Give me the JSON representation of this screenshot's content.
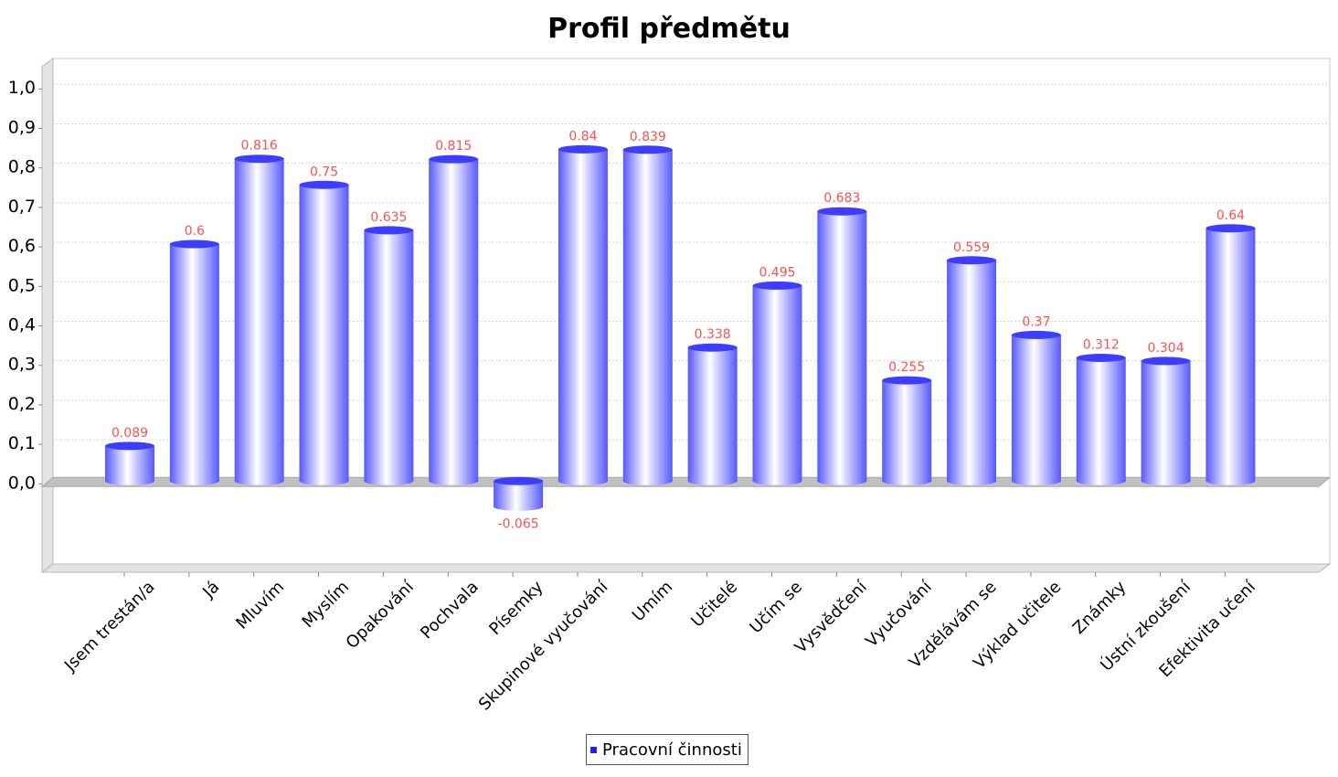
{
  "chart_data": {
    "type": "bar",
    "title": "Profil předmětu",
    "categories": [
      "Jsem trestán/a",
      "Já",
      "Mluvím",
      "Myslím",
      "Opakování",
      "Pochvala",
      "Písemky",
      "Skupinové vyučování",
      "Umím",
      "Učitelé",
      "Učím se",
      "Vysvědčení",
      "Vyučování",
      "Vzdělávám se",
      "Výklad učitele",
      "Známky",
      "Ústní zkoušení",
      "Efektivita učení"
    ],
    "series": [
      {
        "name": "Pracovní činnosti",
        "values": [
          0.089,
          0.6,
          0.816,
          0.75,
          0.635,
          0.815,
          -0.065,
          0.84,
          0.839,
          0.338,
          0.495,
          0.683,
          0.255,
          0.559,
          0.37,
          0.312,
          0.304,
          0.64
        ],
        "labels": [
          "0.089",
          "0.6",
          "0.816",
          "0.75",
          "0.635",
          "0.815",
          "-0.065",
          "0.84",
          "0.839",
          "0.338",
          "0.495",
          "0.683",
          "0.255",
          "0.559",
          "0.37",
          "0.312",
          "0.304",
          "0.64"
        ]
      }
    ],
    "yticks": [
      0.0,
      0.1,
      0.2,
      0.3,
      0.4,
      0.5,
      0.6,
      0.7,
      0.8,
      0.9,
      1.0
    ],
    "ytick_labels": [
      "0,0",
      "0,1",
      "0,2",
      "0,3",
      "0,4",
      "0,5",
      "0,6",
      "0,7",
      "0,8",
      "0,9",
      "1,0"
    ],
    "ylim": [
      -0.21,
      1.07
    ],
    "grid": true,
    "legend_position": "bottom-center",
    "colors": {
      "bar": "#5858ff",
      "bar_highlight": "#ffffff",
      "label": "#ff5050",
      "zero_plane": "#c0c0c0"
    }
  }
}
